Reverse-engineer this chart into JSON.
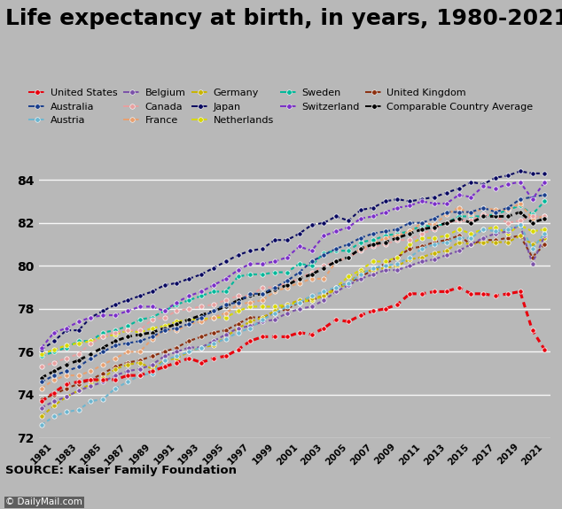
{
  "title": "Life expectancy at birth, in years, 1980-2021",
  "source": "SOURCE: Kaiser Family Foundation",
  "watermark": "© DailyMail.com",
  "years": [
    1980,
    1981,
    1982,
    1983,
    1984,
    1985,
    1986,
    1987,
    1988,
    1989,
    1990,
    1991,
    1992,
    1993,
    1994,
    1995,
    1996,
    1997,
    1998,
    1999,
    2000,
    2001,
    2002,
    2003,
    2004,
    2005,
    2006,
    2007,
    2008,
    2009,
    2010,
    2011,
    2012,
    2013,
    2014,
    2015,
    2016,
    2017,
    2018,
    2019,
    2020,
    2021
  ],
  "series": [
    {
      "name": "United States",
      "color": "#e8000d",
      "zorder": 10,
      "linewidth": 2.2,
      "data": [
        73.7,
        74.1,
        74.5,
        74.6,
        74.7,
        74.7,
        74.7,
        74.9,
        74.9,
        75.1,
        75.3,
        75.5,
        75.7,
        75.5,
        75.7,
        75.8,
        76.1,
        76.5,
        76.7,
        76.7,
        76.7,
        76.9,
        76.8,
        77.1,
        77.5,
        77.4,
        77.7,
        77.9,
        78.0,
        78.2,
        78.7,
        78.7,
        78.8,
        78.8,
        79.0,
        78.7,
        78.7,
        78.6,
        78.7,
        78.8,
        77.0,
        76.1
      ]
    },
    {
      "name": "Australia",
      "color": "#1a3f8c",
      "zorder": 9,
      "linewidth": 1.5,
      "data": [
        74.6,
        74.9,
        75.1,
        75.3,
        75.7,
        76.0,
        76.3,
        76.4,
        76.5,
        76.7,
        77.0,
        77.1,
        77.3,
        77.6,
        77.9,
        78.2,
        78.3,
        78.7,
        78.7,
        79.0,
        79.3,
        79.7,
        80.2,
        80.5,
        80.8,
        81.0,
        81.3,
        81.5,
        81.6,
        81.7,
        82.0,
        82.0,
        82.2,
        82.5,
        82.5,
        82.5,
        82.7,
        82.5,
        82.7,
        83.1,
        83.2,
        83.3
      ]
    },
    {
      "name": "Austria",
      "color": "#6db6d0",
      "zorder": 8,
      "linewidth": 1.5,
      "data": [
        72.6,
        73.0,
        73.2,
        73.3,
        73.7,
        73.8,
        74.3,
        74.6,
        74.9,
        75.0,
        75.6,
        75.8,
        76.0,
        76.2,
        76.4,
        76.6,
        76.9,
        77.1,
        77.5,
        77.8,
        78.1,
        78.3,
        78.6,
        78.8,
        79.0,
        79.2,
        79.6,
        79.9,
        80.0,
        80.1,
        80.4,
        80.8,
        81.0,
        81.1,
        81.3,
        81.3,
        81.7,
        81.6,
        81.7,
        81.9,
        80.8,
        81.5
      ]
    },
    {
      "name": "Belgium",
      "color": "#7b52a8",
      "zorder": 7,
      "linewidth": 1.5,
      "data": [
        73.4,
        73.7,
        73.9,
        74.2,
        74.4,
        74.6,
        74.9,
        75.1,
        75.2,
        75.4,
        75.8,
        76.0,
        76.2,
        76.2,
        76.5,
        76.8,
        77.1,
        77.2,
        77.4,
        77.5,
        77.8,
        78.0,
        78.1,
        78.4,
        78.8,
        79.1,
        79.4,
        79.6,
        79.8,
        79.8,
        80.0,
        80.2,
        80.3,
        80.5,
        80.7,
        81.0,
        81.3,
        81.5,
        81.6,
        81.9,
        80.1,
        81.4
      ]
    },
    {
      "name": "Canada",
      "color": "#e8a0a0",
      "zorder": 6,
      "linewidth": 1.5,
      "data": [
        75.3,
        75.5,
        75.7,
        75.9,
        76.4,
        76.7,
        76.9,
        77.0,
        77.0,
        77.5,
        77.6,
        77.9,
        78.0,
        78.1,
        78.2,
        78.4,
        78.6,
        78.6,
        79.0,
        79.0,
        79.2,
        79.4,
        79.7,
        80.0,
        80.2,
        80.4,
        80.7,
        80.9,
        81.0,
        81.2,
        81.2,
        81.5,
        81.7,
        82.0,
        82.1,
        82.1,
        82.4,
        82.3,
        82.0,
        82.1,
        82.3,
        82.3
      ]
    },
    {
      "name": "France",
      "color": "#e8a070",
      "zorder": 5,
      "linewidth": 1.5,
      "data": [
        74.3,
        74.7,
        74.9,
        74.9,
        75.1,
        75.4,
        75.7,
        76.0,
        76.0,
        76.6,
        77.0,
        77.0,
        77.3,
        77.4,
        77.6,
        77.8,
        78.2,
        78.3,
        78.4,
        78.8,
        79.0,
        79.2,
        79.4,
        79.4,
        80.2,
        80.4,
        80.8,
        81.0,
        81.3,
        81.4,
        81.6,
        82.0,
        81.9,
        82.4,
        82.7,
        82.4,
        82.7,
        82.6,
        82.6,
        82.9,
        82.2,
        82.3
      ]
    },
    {
      "name": "Germany",
      "color": "#c8b400",
      "zorder": 4,
      "linewidth": 1.5,
      "data": [
        73.0,
        73.5,
        73.9,
        74.2,
        74.5,
        74.8,
        75.2,
        75.4,
        75.5,
        75.2,
        75.6,
        75.7,
        76.0,
        76.2,
        76.3,
        76.7,
        77.1,
        77.4,
        77.6,
        77.9,
        78.2,
        78.4,
        78.5,
        78.6,
        78.9,
        79.2,
        79.7,
        79.8,
        79.9,
        80.0,
        80.3,
        80.4,
        80.6,
        80.7,
        81.1,
        81.0,
        81.1,
        81.1,
        81.1,
        81.4,
        81.0,
        81.3
      ]
    },
    {
      "name": "Japan",
      "color": "#0a0a60",
      "zorder": 11,
      "linewidth": 1.5,
      "data": [
        76.1,
        76.5,
        77.0,
        77.0,
        77.6,
        77.9,
        78.2,
        78.4,
        78.6,
        78.8,
        79.1,
        79.2,
        79.4,
        79.6,
        79.9,
        80.2,
        80.5,
        80.7,
        80.8,
        81.2,
        81.2,
        81.5,
        81.9,
        82.0,
        82.3,
        82.1,
        82.6,
        82.7,
        83.0,
        83.1,
        83.0,
        83.1,
        83.2,
        83.4,
        83.6,
        83.9,
        83.8,
        84.1,
        84.2,
        84.4,
        84.3,
        84.3
      ]
    },
    {
      "name": "Netherlands",
      "color": "#d8d800",
      "zorder": 3,
      "linewidth": 1.5,
      "data": [
        75.9,
        76.1,
        76.3,
        76.4,
        76.5,
        76.7,
        76.8,
        77.0,
        76.9,
        77.1,
        77.2,
        77.4,
        77.5,
        77.5,
        77.6,
        77.6,
        77.9,
        78.1,
        78.1,
        78.1,
        78.2,
        78.3,
        78.4,
        78.6,
        79.0,
        79.5,
        79.8,
        80.2,
        80.2,
        80.4,
        81.0,
        81.3,
        81.3,
        81.4,
        81.7,
        81.5,
        81.7,
        81.8,
        81.5,
        81.9,
        81.6,
        81.7
      ]
    },
    {
      "name": "Sweden",
      "color": "#00b89a",
      "zorder": 2,
      "linewidth": 1.5,
      "data": [
        75.8,
        76.0,
        76.2,
        76.5,
        76.5,
        76.9,
        77.0,
        77.2,
        77.5,
        77.6,
        77.9,
        78.2,
        78.4,
        78.6,
        78.8,
        78.8,
        79.5,
        79.6,
        79.6,
        79.7,
        79.7,
        80.1,
        80.0,
        80.6,
        80.7,
        80.7,
        81.1,
        81.2,
        81.4,
        81.5,
        81.6,
        81.9,
        81.8,
        82.0,
        82.3,
        82.3,
        82.3,
        82.4,
        82.6,
        82.8,
        82.4,
        83.0
      ]
    },
    {
      "name": "Switzerland",
      "color": "#7b30c8",
      "zorder": 12,
      "linewidth": 1.5,
      "data": [
        76.2,
        76.9,
        77.1,
        77.4,
        77.6,
        77.7,
        77.7,
        77.9,
        78.1,
        78.1,
        77.9,
        78.3,
        78.6,
        78.8,
        79.1,
        79.4,
        79.8,
        80.1,
        80.1,
        80.2,
        80.4,
        80.9,
        80.7,
        81.4,
        81.6,
        81.8,
        82.2,
        82.3,
        82.5,
        82.7,
        82.8,
        83.0,
        82.9,
        82.9,
        83.3,
        83.2,
        83.7,
        83.6,
        83.8,
        83.9,
        83.1,
        83.9
      ]
    },
    {
      "name": "United Kingdom",
      "color": "#8b3010",
      "zorder": 1,
      "linewidth": 1.5,
      "data": [
        73.8,
        74.0,
        74.3,
        74.5,
        74.7,
        75.0,
        75.3,
        75.5,
        75.6,
        75.8,
        76.0,
        76.2,
        76.5,
        76.7,
        76.9,
        77.0,
        77.3,
        77.6,
        77.6,
        77.8,
        78.0,
        78.3,
        78.4,
        78.6,
        79.0,
        79.2,
        79.5,
        79.8,
        80.1,
        80.4,
        80.8,
        80.9,
        81.1,
        81.2,
        81.4,
        81.0,
        81.2,
        81.2,
        81.3,
        81.4,
        80.4,
        81.0
      ]
    },
    {
      "name": "Comparable Country Average",
      "color": "#000000",
      "zorder": 8,
      "linewidth": 2.0,
      "data": [
        74.8,
        75.1,
        75.4,
        75.6,
        75.9,
        76.2,
        76.5,
        76.7,
        76.8,
        76.9,
        77.1,
        77.3,
        77.5,
        77.7,
        77.9,
        78.1,
        78.4,
        78.6,
        78.7,
        78.9,
        79.1,
        79.4,
        79.6,
        79.9,
        80.2,
        80.4,
        80.8,
        81.0,
        81.1,
        81.3,
        81.5,
        81.7,
        81.8,
        82.0,
        82.2,
        82.0,
        82.3,
        82.3,
        82.3,
        82.5,
        82.0,
        82.2
      ]
    }
  ],
  "legend_order": [
    "United States",
    "Australia",
    "Austria",
    "Belgium",
    "Canada",
    "France",
    "Germany",
    "Japan",
    "Netherlands",
    "Sweden",
    "Switzerland",
    "United Kingdom",
    "Comparable Country Average"
  ],
  "ylim": [
    72,
    85.5
  ],
  "yticks": [
    72,
    74,
    76,
    78,
    80,
    82,
    84
  ],
  "background_color": "#b8b8b8",
  "title_fontsize": 18,
  "legend_fontsize": 8.0
}
